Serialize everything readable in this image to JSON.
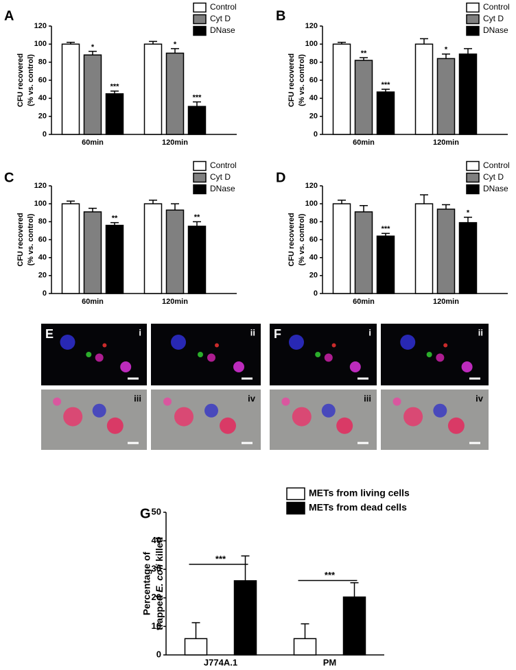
{
  "chart_data": [
    {
      "type": "bar",
      "label": "A",
      "ylabel": [
        "CFU recovered",
        "(% vs. control)"
      ],
      "categories": [
        "60min",
        "120min"
      ],
      "series": [
        {
          "name": "Control",
          "color": "#ffffff",
          "values": [
            100,
            100
          ],
          "errors": [
            2,
            3
          ],
          "significance": [
            null,
            null
          ]
        },
        {
          "name": "Cyt D",
          "color": "#808080",
          "values": [
            88,
            90
          ],
          "errors": [
            4,
            5
          ],
          "significance": [
            "*",
            "*"
          ]
        },
        {
          "name": "DNase",
          "color": "#000000",
          "values": [
            45,
            31
          ],
          "errors": [
            3,
            5
          ],
          "significance": [
            "***",
            "***"
          ]
        }
      ],
      "ylim": [
        0,
        120
      ],
      "yticks": [
        0,
        20,
        40,
        60,
        80,
        100,
        120
      ]
    },
    {
      "type": "bar",
      "label": "B",
      "ylabel": [
        "CFU recovered",
        "(% vs. control)"
      ],
      "categories": [
        "60min",
        "120min"
      ],
      "series": [
        {
          "name": "Control",
          "color": "#ffffff",
          "values": [
            100,
            100
          ],
          "errors": [
            2,
            6
          ],
          "significance": [
            null,
            null
          ]
        },
        {
          "name": "Cyt D",
          "color": "#808080",
          "values": [
            82,
            84
          ],
          "errors": [
            3,
            5
          ],
          "significance": [
            "**",
            "*"
          ]
        },
        {
          "name": "DNase",
          "color": "#000000",
          "values": [
            47,
            89
          ],
          "errors": [
            3,
            6
          ],
          "significance": [
            "***",
            null
          ]
        }
      ],
      "ylim": [
        0,
        120
      ],
      "yticks": [
        0,
        20,
        40,
        60,
        80,
        100,
        120
      ]
    },
    {
      "type": "bar",
      "label": "C",
      "ylabel": [
        "CFU recovered",
        "(% vs. control)"
      ],
      "categories": [
        "60min",
        "120min"
      ],
      "series": [
        {
          "name": "Control",
          "color": "#ffffff",
          "values": [
            100,
            100
          ],
          "errors": [
            3,
            4
          ],
          "significance": [
            null,
            null
          ]
        },
        {
          "name": "Cyt D",
          "color": "#808080",
          "values": [
            91,
            93
          ],
          "errors": [
            4,
            7
          ],
          "significance": [
            null,
            null
          ]
        },
        {
          "name": "DNase",
          "color": "#000000",
          "values": [
            76,
            75
          ],
          "errors": [
            3,
            5
          ],
          "significance": [
            "**",
            "**"
          ]
        }
      ],
      "ylim": [
        0,
        120
      ],
      "yticks": [
        0,
        20,
        40,
        60,
        80,
        100,
        120
      ]
    },
    {
      "type": "bar",
      "label": "D",
      "ylabel": [
        "CFU recovered",
        "(% vs. control)"
      ],
      "categories": [
        "60min",
        "120min"
      ],
      "series": [
        {
          "name": "Control",
          "color": "#ffffff",
          "values": [
            100,
            100
          ],
          "errors": [
            4,
            10
          ],
          "significance": [
            null,
            null
          ]
        },
        {
          "name": "Cyt D",
          "color": "#808080",
          "values": [
            91,
            94
          ],
          "errors": [
            7,
            5
          ],
          "significance": [
            null,
            null
          ]
        },
        {
          "name": "DNase",
          "color": "#000000",
          "values": [
            64,
            79
          ],
          "errors": [
            3,
            6
          ],
          "significance": [
            "***",
            "*"
          ]
        }
      ],
      "ylim": [
        0,
        120
      ],
      "yticks": [
        0,
        20,
        40,
        60,
        80,
        100,
        120
      ]
    },
    {
      "type": "bar",
      "label": "G",
      "ylabel": [
        "Percentage of",
        "trapped ",
        "E. coli",
        " killed"
      ],
      "categories": [
        "J774A.1",
        "PM"
      ],
      "series": [
        {
          "name": "METs from living cells",
          "color": "#ffffff",
          "values": [
            5.7,
            5.7
          ],
          "errors": [
            5.6,
            5.2
          ]
        },
        {
          "name": "METs from dead cells",
          "color": "#000000",
          "values": [
            26,
            20.3
          ],
          "errors": [
            8.7,
            5
          ]
        }
      ],
      "significance": [
        "***",
        "***"
      ],
      "ylim": [
        0,
        50
      ],
      "yticks": [
        0,
        10,
        20,
        30,
        40,
        50
      ]
    }
  ],
  "images": [
    {
      "label": "E",
      "panels": [
        "i",
        "ii",
        "iii",
        "iv"
      ]
    },
    {
      "label": "F",
      "panels": [
        "i",
        "ii",
        "iii",
        "iv"
      ]
    }
  ]
}
